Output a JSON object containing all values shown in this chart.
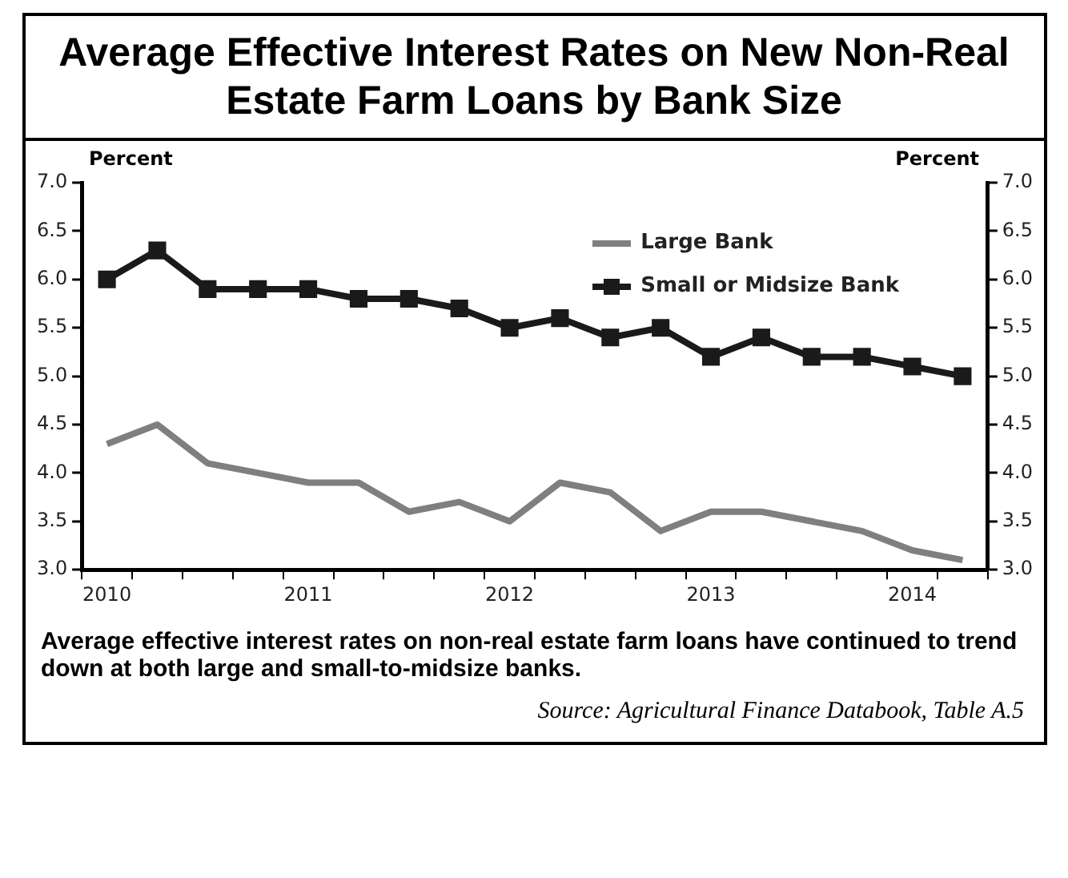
{
  "chart_data": {
    "type": "line",
    "title": "Average Effective Interest Rates on New Non-Real Estate Farm Loans by Bank Size",
    "ylabel": "Percent",
    "y2label": "Percent",
    "categories": [
      "2010",
      null,
      null,
      null,
      "2011",
      null,
      null,
      null,
      "2012",
      null,
      null,
      null,
      "2013",
      null,
      null,
      null,
      "2014",
      null
    ],
    "series": [
      {
        "name": "Large Bank",
        "color": "#7f7f7f",
        "marker": "none",
        "values": [
          4.3,
          4.5,
          4.1,
          4.0,
          3.9,
          3.9,
          3.6,
          3.7,
          3.5,
          3.9,
          3.8,
          3.4,
          3.6,
          3.6,
          3.5,
          3.4,
          3.2,
          3.1
        ]
      },
      {
        "name": "Small or Midsize Bank",
        "color": "#1a1a1a",
        "marker": "square",
        "values": [
          6.0,
          6.3,
          5.9,
          5.9,
          5.9,
          5.8,
          5.8,
          5.7,
          5.5,
          5.6,
          5.4,
          5.5,
          5.2,
          5.4,
          5.2,
          5.2,
          5.1,
          5.0
        ]
      }
    ],
    "ylim": [
      3,
      7
    ],
    "yticks": [
      {
        "value": 3,
        "label": "3.0"
      },
      {
        "value": 3.5,
        "label": "3.5"
      },
      {
        "value": 4,
        "label": "4.0"
      },
      {
        "value": 4.5,
        "label": "4.5"
      },
      {
        "value": 5,
        "label": "5.0"
      },
      {
        "value": 5.5,
        "label": "5.5"
      },
      {
        "value": 6,
        "label": "6.0"
      },
      {
        "value": 6.5,
        "label": "6.5"
      },
      {
        "value": 7,
        "label": "7.0"
      }
    ],
    "y2lim": [
      3,
      7
    ],
    "y2ticks": [
      {
        "value": 3,
        "label": "3.0"
      },
      {
        "value": 3.5,
        "label": "3.5"
      },
      {
        "value": 4,
        "label": "4.0"
      },
      {
        "value": 4.5,
        "label": "4.5"
      },
      {
        "value": 5,
        "label": "5.0"
      },
      {
        "value": 5.5,
        "label": "5.5"
      },
      {
        "value": 6,
        "label": "6.0"
      },
      {
        "value": 6.5,
        "label": "6.5"
      },
      {
        "value": 7,
        "label": "7.0"
      }
    ],
    "grid": false,
    "legend": "top right",
    "annotations": [
      "Average effective interest rates on non-real estate farm loans have continued to trend down at both large and small-to-midsize banks.",
      "Source: Agricultural Finance Databook, Table A.5"
    ]
  }
}
